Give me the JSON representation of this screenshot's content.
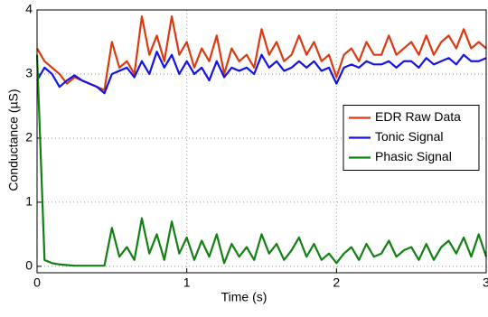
{
  "chart_data": {
    "type": "line",
    "xlabel": "Time (s)",
    "ylabel": "Conductance (µS)",
    "x": [
      0,
      0.05,
      0.1,
      0.15,
      0.2,
      0.25,
      0.3,
      0.35,
      0.4,
      0.45,
      0.5,
      0.55,
      0.6,
      0.65,
      0.7,
      0.75,
      0.8,
      0.85,
      0.9,
      0.95,
      1,
      1.05,
      1.1,
      1.15,
      1.2,
      1.25,
      1.3,
      1.35,
      1.4,
      1.45,
      1.5,
      1.55,
      1.6,
      1.65,
      1.7,
      1.75,
      1.8,
      1.85,
      1.9,
      1.95,
      2,
      2.05,
      2.1,
      2.15,
      2.2,
      2.25,
      2.3,
      2.35,
      2.4,
      2.45,
      2.5,
      2.55,
      2.6,
      2.65,
      2.7,
      2.75,
      2.8,
      2.85,
      2.9,
      2.95,
      3
    ],
    "series": [
      {
        "name": "EDR Raw Data",
        "color": "#d93a10",
        "values": [
          3.4,
          3.2,
          3.1,
          3.0,
          2.85,
          2.95,
          2.9,
          2.85,
          2.8,
          2.75,
          3.5,
          3.1,
          3.2,
          3.0,
          3.9,
          3.3,
          3.6,
          3.2,
          3.9,
          3.3,
          3.5,
          3.1,
          3.4,
          3.2,
          3.6,
          3.0,
          3.4,
          3.2,
          3.3,
          3.1,
          3.7,
          3.3,
          3.5,
          3.2,
          3.3,
          3.6,
          3.3,
          3.5,
          3.2,
          3.3,
          2.95,
          3.3,
          3.4,
          3.2,
          3.5,
          3.3,
          3.3,
          3.6,
          3.3,
          3.4,
          3.5,
          3.3,
          3.6,
          3.3,
          3.5,
          3.6,
          3.4,
          3.7,
          3.4,
          3.5,
          3.4
        ]
      },
      {
        "name": "Tonic Signal",
        "color": "#1414e6",
        "values": [
          2.9,
          3.1,
          3.0,
          2.8,
          2.9,
          2.98,
          2.9,
          2.85,
          2.8,
          2.7,
          3.0,
          3.05,
          3.1,
          2.95,
          3.2,
          3.0,
          3.35,
          3.1,
          3.3,
          3.0,
          3.2,
          3.0,
          3.1,
          2.9,
          3.2,
          2.95,
          3.1,
          3.05,
          3.1,
          3.0,
          3.3,
          3.1,
          3.2,
          3.05,
          3.1,
          3.2,
          3.1,
          3.2,
          3.05,
          3.1,
          2.85,
          3.1,
          3.15,
          3.1,
          3.2,
          3.15,
          3.15,
          3.2,
          3.1,
          3.2,
          3.2,
          3.1,
          3.25,
          3.15,
          3.2,
          3.25,
          3.15,
          3.3,
          3.2,
          3.2,
          3.25
        ]
      },
      {
        "name": "Phasic Signal",
        "color": "#128012",
        "values": [
          3.3,
          0.1,
          0.05,
          0.03,
          0.02,
          0.01,
          0.01,
          0.01,
          0.01,
          0.01,
          0.6,
          0.15,
          0.3,
          0.1,
          0.75,
          0.2,
          0.5,
          0.1,
          0.7,
          0.2,
          0.45,
          0.1,
          0.4,
          0.15,
          0.5,
          0.05,
          0.35,
          0.15,
          0.3,
          0.1,
          0.5,
          0.2,
          0.35,
          0.1,
          0.25,
          0.45,
          0.15,
          0.35,
          0.1,
          0.2,
          0.05,
          0.2,
          0.3,
          0.1,
          0.35,
          0.15,
          0.2,
          0.4,
          0.15,
          0.25,
          0.3,
          0.1,
          0.35,
          0.1,
          0.3,
          0.4,
          0.2,
          0.45,
          0.15,
          0.5,
          0.15
        ]
      }
    ],
    "xlim": [
      0,
      3
    ],
    "ylim": [
      -0.1,
      4
    ],
    "xticks": [
      0,
      1,
      2,
      3
    ],
    "yticks": [
      0,
      1,
      2,
      3,
      4
    ],
    "grid": true,
    "legend": "right"
  }
}
